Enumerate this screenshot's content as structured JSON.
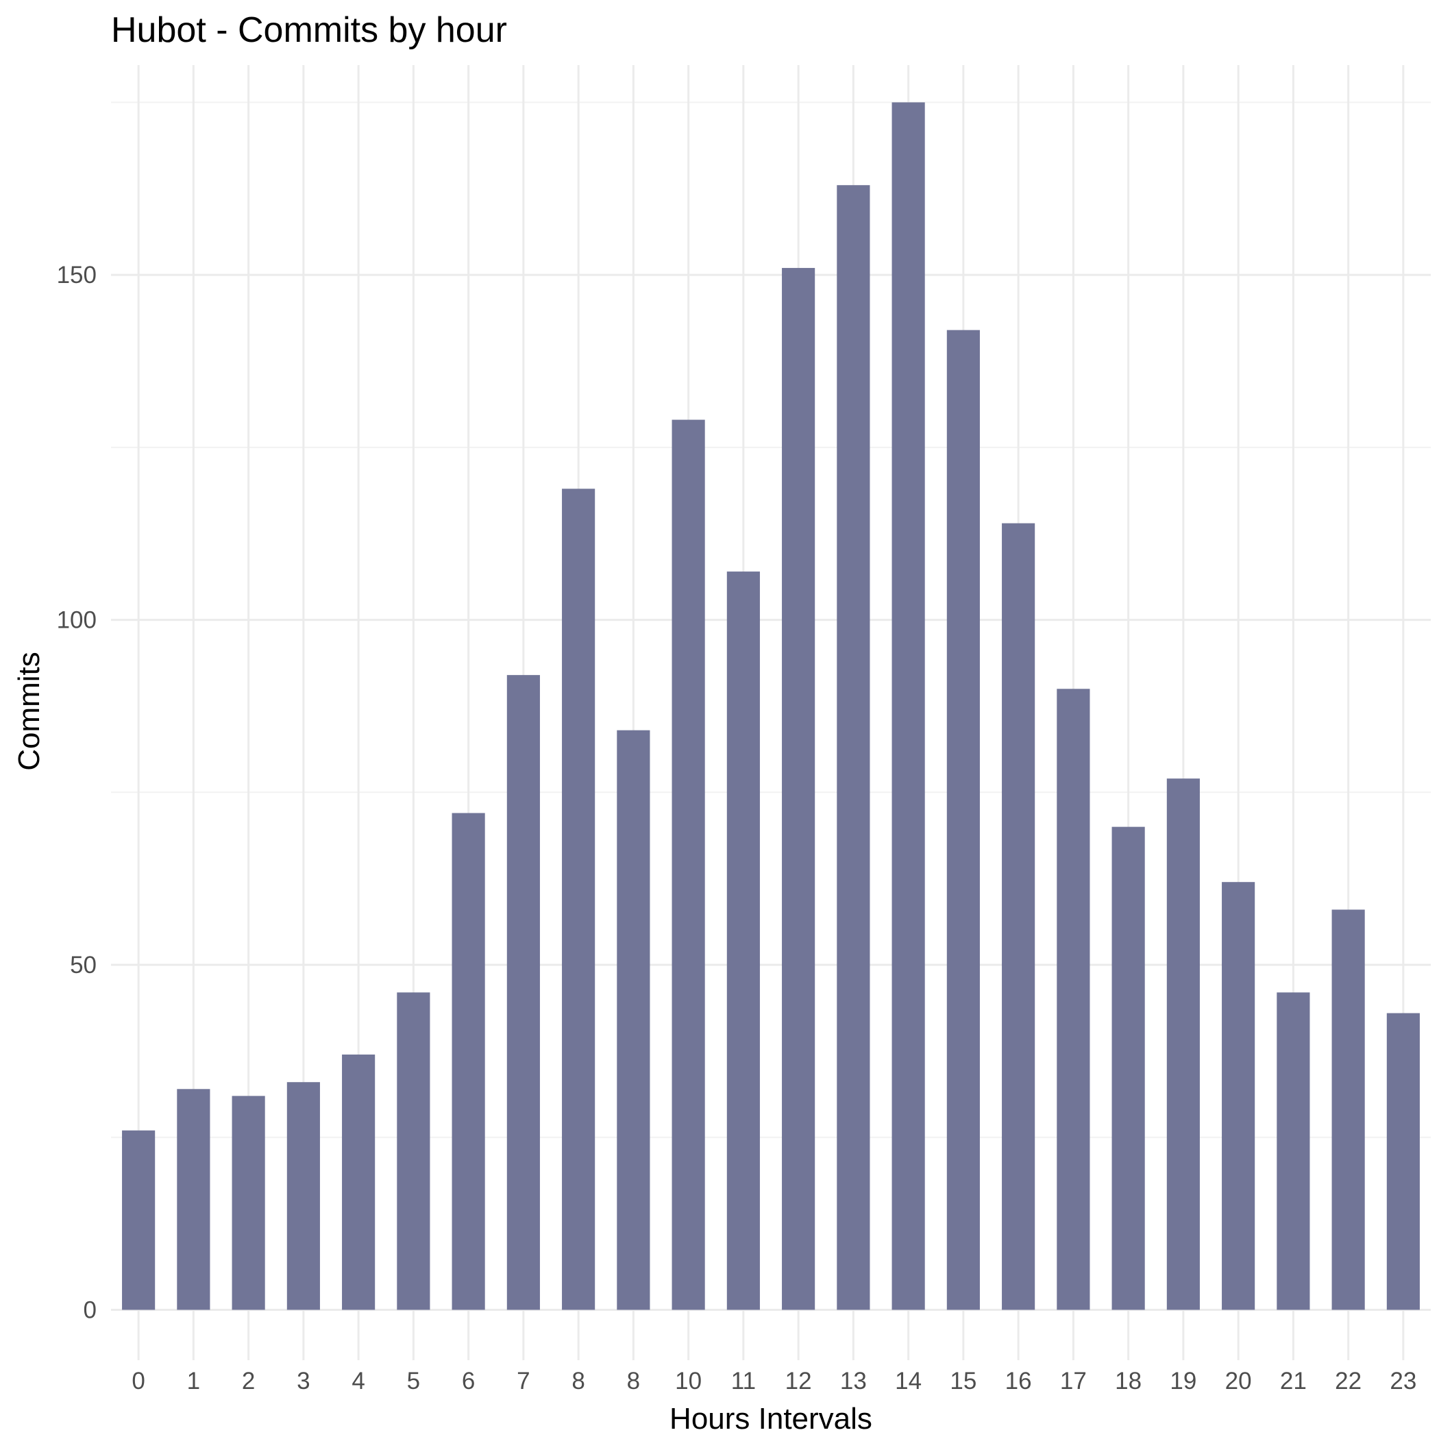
{
  "chart_data": {
    "type": "bar",
    "title": "Hubot - Commits by hour",
    "xlabel": "Hours Intervals",
    "ylabel": "Commits",
    "categories": [
      "0",
      "1",
      "2",
      "3",
      "4",
      "5",
      "6",
      "7",
      "8",
      "8",
      "10",
      "11",
      "12",
      "13",
      "14",
      "15",
      "16",
      "17",
      "18",
      "19",
      "20",
      "21",
      "22",
      "23"
    ],
    "values": [
      26,
      32,
      31,
      33,
      37,
      46,
      72,
      92,
      119,
      84,
      129,
      107,
      151,
      163,
      175,
      142,
      114,
      90,
      70,
      77,
      62,
      46,
      58,
      43
    ],
    "ylim": [
      -7.3,
      180.4
    ],
    "yticks": [
      0,
      50,
      100,
      150
    ],
    "grid": true,
    "bar_color": "#717597"
  }
}
